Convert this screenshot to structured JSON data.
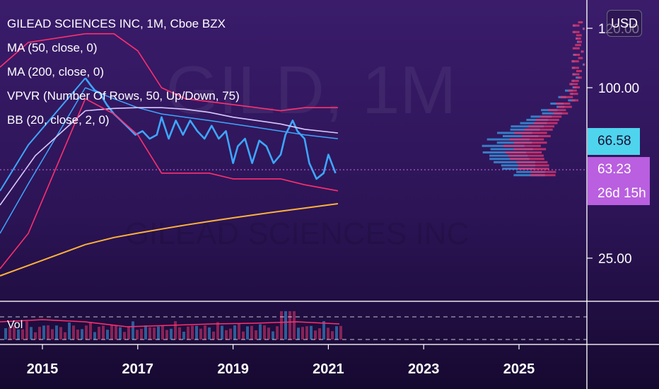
{
  "legend": {
    "title": "GILEAD SCIENCES INC, 1M, Cboe BZX",
    "ma50": "MA (50, close, 0)",
    "ma200": "MA (200, close, 0)",
    "vpvr": "VPVR (Number Of Rows, 50, Up/Down, 75)",
    "bb": "BB (20, close, 2, 0)"
  },
  "watermark": {
    "symbol": "GILD, 1M",
    "name": "GILEAD SCIENCES INC"
  },
  "currency_button": "USD",
  "price_tags": {
    "ma_value": "66.58",
    "last_price": "63.23",
    "countdown": "26d 15h"
  },
  "volume_label": "Vol",
  "colors": {
    "price": "#3da6ff",
    "bb": "#ff2f6e",
    "ma50": "#d7c9ff",
    "ma200": "#ffb13b",
    "ma_tag": "#4fd4ee",
    "last_tag": "#b95fe0",
    "vpvr_up": "#3aa0e8",
    "vpvr_down": "#e0376e"
  },
  "chart_data": {
    "type": "line",
    "title": "GILEAD SCIENCES INC, 1M, Cboe BZX",
    "x_ticks": [
      "2015",
      "2017",
      "2019",
      "2021",
      "2023",
      "2025"
    ],
    "y_ticks": [
      "120.00",
      "100.00",
      "25.00"
    ],
    "series": [
      {
        "name": "close",
        "x": [
          2015.9,
          2016.0,
          2016.1,
          2016.2,
          2016.35,
          2016.5,
          2016.65,
          2016.8,
          2016.95,
          2017.1,
          2017.25,
          2017.4,
          2017.5,
          2017.65,
          2017.8,
          2017.95,
          2018.1,
          2018.25,
          2018.4,
          2018.55,
          2018.7,
          2018.85,
          2019.0,
          2019.1,
          2019.25,
          2019.4,
          2019.55,
          2019.7,
          2019.85,
          2020.0,
          2020.1,
          2020.25,
          2020.35,
          2020.5,
          2020.6,
          2020.75,
          2020.9,
          2021.0,
          2021.15
        ],
        "values": [
          103,
          101,
          98,
          96,
          88,
          82,
          78,
          74,
          70,
          72,
          68,
          70,
          80,
          68,
          78,
          70,
          78,
          72,
          68,
          75,
          68,
          72,
          64,
          66,
          68,
          64,
          67,
          66,
          64,
          65,
          70,
          78,
          72,
          68,
          64,
          60,
          62,
          65,
          62
        ]
      },
      {
        "name": "MA (50, close, 0)",
        "x": [
          2015.9,
          2016.5,
          2017.0,
          2017.5,
          2018.0,
          2018.5,
          2019.0,
          2019.5,
          2020.0,
          2020.5,
          2021.2
        ],
        "values": [
          100,
          92,
          86,
          82,
          80,
          78,
          76,
          74,
          72,
          70,
          68
        ]
      },
      {
        "name": "MA (200, close, 0)",
        "x": [
          2015.9,
          2016.5,
          2017.0,
          2017.5,
          2018.0,
          2018.5,
          2019.0,
          2019.5,
          2020.0,
          2020.5,
          2021.2
        ],
        "values": [
          84,
          85.5,
          86,
          86,
          85,
          83,
          80,
          78,
          76,
          73,
          71
        ]
      },
      {
        "name": "BB upper",
        "x": [
          2015.9,
          2016.5,
          2017.0,
          2017.5,
          2018.0,
          2018.5,
          2019.0,
          2019.5,
          2020.0,
          2020.5,
          2021.2
        ],
        "values": [
          118,
          118,
          112,
          100,
          92,
          90,
          88,
          86,
          84,
          86,
          86
        ]
      },
      {
        "name": "BB lower",
        "x": [
          2015.9,
          2016.5,
          2017.0,
          2017.5,
          2018.0,
          2018.5,
          2019.0,
          2019.5,
          2020.0,
          2020.5,
          2021.2
        ],
        "values": [
          92,
          82,
          70,
          62,
          62,
          62,
          60,
          60,
          60,
          58,
          56
        ]
      },
      {
        "name": "MA200 long",
        "x": [
          2015.9,
          2016.5,
          2017.0,
          2017.5,
          2018.0,
          2018.5,
          2019.0,
          2019.5,
          2020.0,
          2020.5,
          2021.2
        ],
        "values": [
          30,
          33,
          35,
          37,
          39,
          41,
          43,
          45,
          47,
          49,
          52
        ]
      }
    ],
    "legend_position": "top-left",
    "grid": false
  }
}
